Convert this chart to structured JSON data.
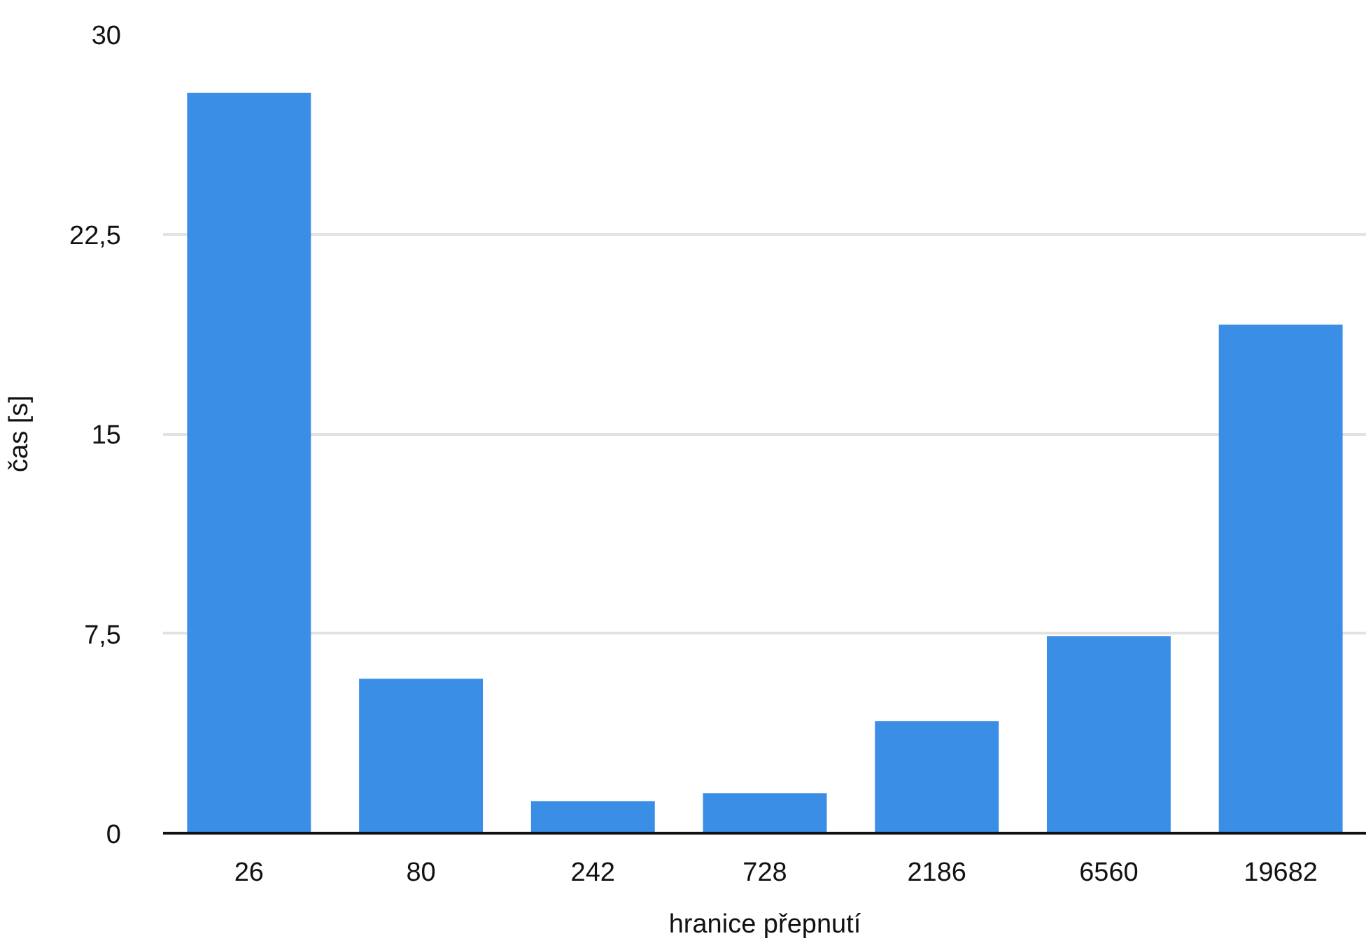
{
  "chart_data": {
    "type": "bar",
    "xlabel": "hranice přepnutí",
    "ylabel": "čas [s]",
    "categories": [
      "26",
      "80",
      "242",
      "728",
      "2186",
      "6560",
      "19682"
    ],
    "values": [
      27.8,
      5.8,
      1.2,
      1.5,
      4.2,
      7.4,
      19.1
    ],
    "color": "#3a8ee6",
    "ylim": [
      0,
      30
    ],
    "yticks": [
      0,
      {
        "value": 7.5,
        "label": "7,5"
      },
      15,
      {
        "value": 22.5,
        "label": "22,5"
      },
      30
    ],
    "grid": "y"
  }
}
